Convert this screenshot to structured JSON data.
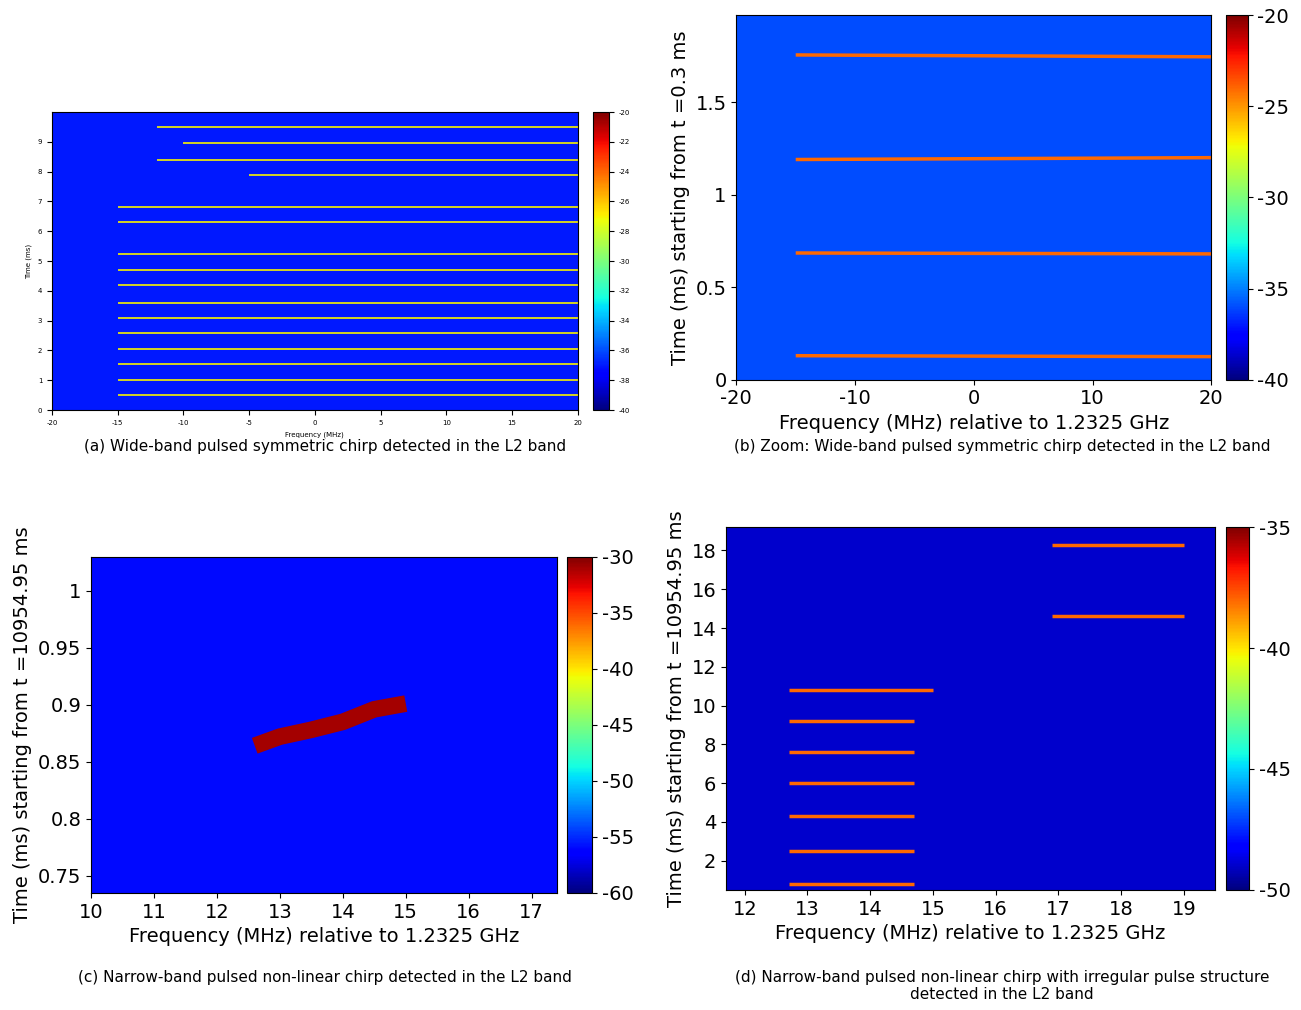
{
  "chart_data": [
    {
      "type": "spectrogram",
      "title": "(a) Wide-band pulsed symmetric chirp detected in the L2 band",
      "x_label": "Frequency (MHz)",
      "y_label": "Time (ms)",
      "xlim": [
        -20,
        20
      ],
      "xticks": [
        -20,
        -15,
        -10,
        -5,
        0,
        5,
        10,
        15,
        20
      ],
      "ylim": [
        0,
        10
      ],
      "yticks": [
        0,
        1,
        2,
        3,
        4,
        5,
        6,
        7,
        8,
        9
      ],
      "colorbar": {
        "range": [
          -40,
          -20
        ],
        "ticks": [
          -20,
          -22,
          -24,
          -26,
          -28,
          -30,
          -32,
          -34,
          -36,
          -38,
          -40
        ]
      },
      "background": -37,
      "pulses": [
        {
          "frequency": [
            -12,
            20
          ],
          "time": [
            9.5,
            9.5
          ],
          "level": -27
        },
        {
          "frequency": [
            -10,
            20
          ],
          "time": [
            8.95,
            8.95
          ],
          "level": -27
        },
        {
          "frequency": [
            -12,
            20
          ],
          "time": [
            8.4,
            8.4
          ],
          "level": -27
        },
        {
          "frequency": [
            -5,
            20
          ],
          "time": [
            7.88,
            7.88
          ],
          "level": -27
        },
        {
          "frequency": [
            -15,
            20
          ],
          "time": [
            6.8,
            6.8
          ],
          "level": -27
        },
        {
          "frequency": [
            -15,
            20
          ],
          "time": [
            6.3,
            6.3
          ],
          "level": -27
        },
        {
          "frequency": [
            -15,
            20
          ],
          "time": [
            5.25,
            5.25
          ],
          "level": -27
        },
        {
          "frequency": [
            -15,
            20
          ],
          "time": [
            4.7,
            4.7
          ],
          "level": -27
        },
        {
          "frequency": [
            -15,
            20
          ],
          "time": [
            4.2,
            4.2
          ],
          "level": -27
        },
        {
          "frequency": [
            -15,
            20
          ],
          "time": [
            3.6,
            3.6
          ],
          "level": -27
        },
        {
          "frequency": [
            -15,
            20
          ],
          "time": [
            3.1,
            3.1
          ],
          "level": -27
        },
        {
          "frequency": [
            -15,
            20
          ],
          "time": [
            2.6,
            2.6
          ],
          "level": -27
        },
        {
          "frequency": [
            -15,
            20
          ],
          "time": [
            2.05,
            2.05
          ],
          "level": -27
        },
        {
          "frequency": [
            -15,
            20
          ],
          "time": [
            1.55,
            1.55
          ],
          "level": -27
        },
        {
          "frequency": [
            -15,
            20
          ],
          "time": [
            1.0,
            1.0
          ],
          "level": -27
        },
        {
          "frequency": [
            -15,
            20
          ],
          "time": [
            0.5,
            0.5
          ],
          "level": -27
        }
      ]
    },
    {
      "type": "spectrogram",
      "title": "(b) Zoom: Wide-band pulsed symmetric chirp detected in the L2 band",
      "x_label": "Frequency (MHz) relative to 1.2325 GHz",
      "y_label": "Time (ms) starting from t =0.3 ms",
      "xlim": [
        -20,
        20
      ],
      "xticks": [
        -20,
        -10,
        0,
        10,
        20
      ],
      "ylim": [
        0,
        1.97
      ],
      "yticks": [
        0,
        0.5,
        1,
        1.5
      ],
      "colorbar": {
        "range": [
          -40,
          -20
        ],
        "ticks": [
          -20,
          -25,
          -30,
          -35,
          -40
        ]
      },
      "background": -36,
      "pulses": [
        {
          "frequency": [
            -15,
            20
          ],
          "time": [
            0.13,
            0.125
          ],
          "level": -24
        },
        {
          "frequency": [
            -15,
            20
          ],
          "time": [
            0.685,
            0.68
          ],
          "level": -24
        },
        {
          "frequency": [
            -15,
            20
          ],
          "time": [
            1.19,
            1.2
          ],
          "level": -24
        },
        {
          "frequency": [
            -15,
            20
          ],
          "time": [
            1.755,
            1.745
          ],
          "level": -24
        }
      ]
    },
    {
      "type": "spectrogram",
      "title": "(c) Narrow-band pulsed non-linear chirp detected in the L2 band",
      "x_label": "Frequency (MHz) relative to 1.2325 GHz",
      "y_label": "Time (ms) starting from t =10954.95 ms",
      "xlim": [
        10,
        17.4
      ],
      "xticks": [
        10,
        11,
        12,
        13,
        14,
        15,
        16,
        17
      ],
      "ylim": [
        0.735,
        1.03
      ],
      "yticks": [
        0.75,
        0.8,
        0.85,
        0.9,
        0.95,
        1
      ],
      "colorbar": {
        "range": [
          -60,
          -30
        ],
        "ticks": [
          -30,
          -35,
          -40,
          -45,
          -50,
          -55,
          -60
        ]
      },
      "background": -56,
      "pulses": [
        {
          "frequency": [
            12.6,
            13.0,
            13.5,
            14.0,
            14.5,
            15.0
          ],
          "time": [
            0.864,
            0.872,
            0.878,
            0.885,
            0.896,
            0.901
          ],
          "level": -31
        }
      ]
    },
    {
      "type": "spectrogram",
      "title": "(d) Narrow-band pulsed non-linear chirp with irregular pulse structure detected in the L2 band",
      "x_label": "Frequency (MHz) relative to 1.2325 GHz",
      "y_label": "Time (ms) starting from t =10954.95 ms",
      "xlim": [
        11.7,
        19.5
      ],
      "xticks": [
        12,
        13,
        14,
        15,
        16,
        17,
        18,
        19
      ],
      "ylim": [
        0.5,
        19.2
      ],
      "yticks": [
        2,
        4,
        6,
        8,
        10,
        12,
        14,
        16,
        18
      ],
      "colorbar": {
        "range": [
          -50,
          -35
        ],
        "ticks": [
          -35,
          -40,
          -45,
          -50
        ]
      },
      "background": -49,
      "pulses": [
        {
          "frequency": [
            12.7,
            14.7
          ],
          "time": [
            0.8,
            0.8
          ],
          "level": -38
        },
        {
          "frequency": [
            12.7,
            14.7
          ],
          "time": [
            2.5,
            2.5
          ],
          "level": -38
        },
        {
          "frequency": [
            12.7,
            14.7
          ],
          "time": [
            4.3,
            4.3
          ],
          "level": -38
        },
        {
          "frequency": [
            12.7,
            14.7
          ],
          "time": [
            6.0,
            6.0
          ],
          "level": -38
        },
        {
          "frequency": [
            12.7,
            14.7
          ],
          "time": [
            7.6,
            7.6
          ],
          "level": -38
        },
        {
          "frequency": [
            12.7,
            14.7
          ],
          "time": [
            9.2,
            9.2
          ],
          "level": -38
        },
        {
          "frequency": [
            12.7,
            15.0
          ],
          "time": [
            10.8,
            10.8
          ],
          "level": -38
        },
        {
          "frequency": [
            16.9,
            19.0
          ],
          "time": [
            14.6,
            14.6
          ],
          "level": -38
        },
        {
          "frequency": [
            16.9,
            19.0
          ],
          "time": [
            18.3,
            18.3
          ],
          "level": -38
        }
      ]
    }
  ]
}
